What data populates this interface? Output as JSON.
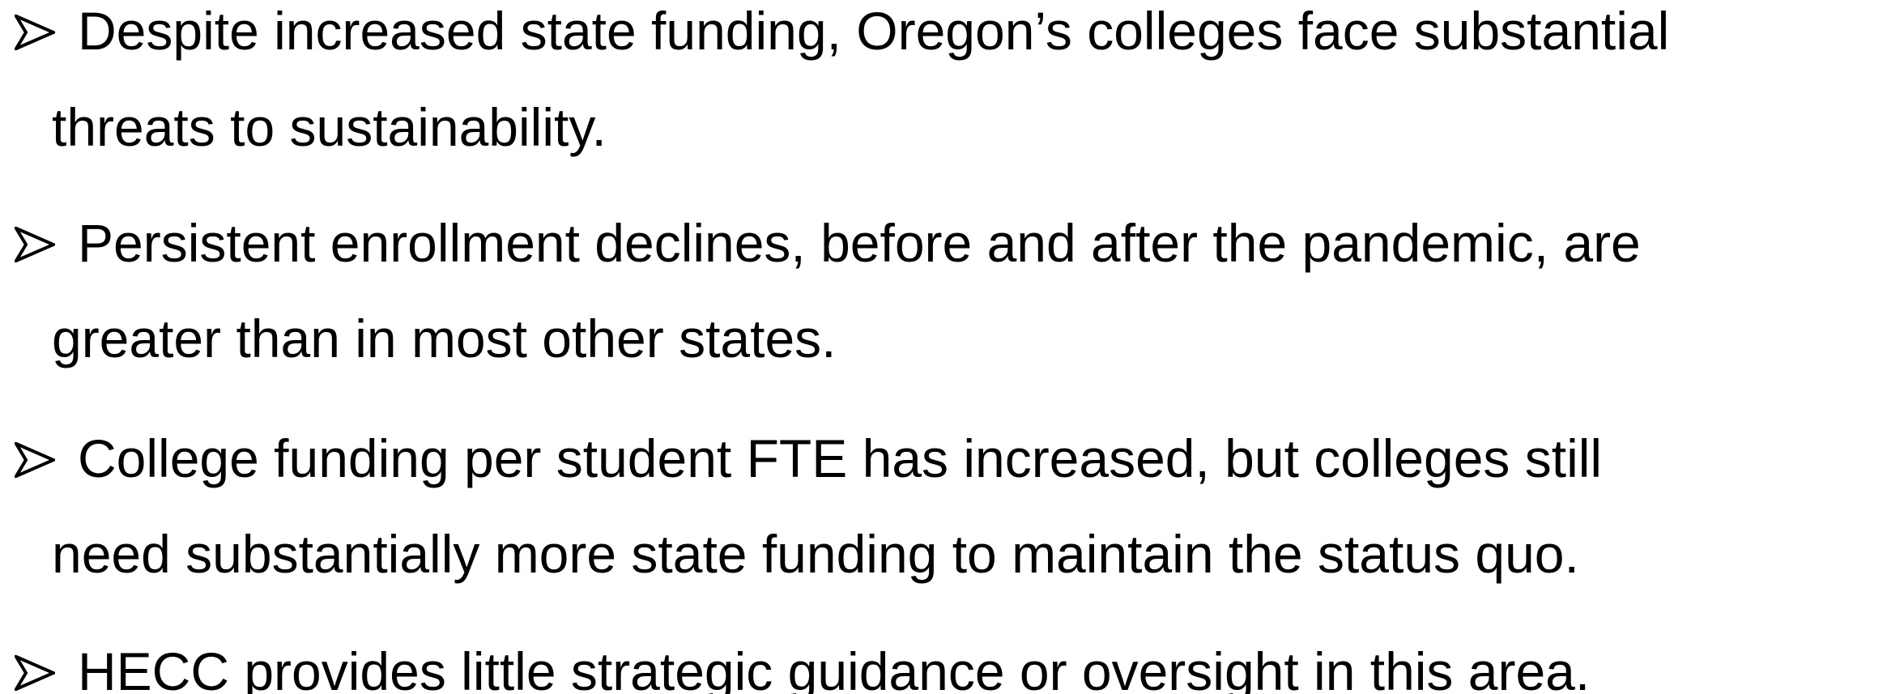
{
  "bullets": [
    {
      "lines": [
        "Despite increased state funding, Oregon’s colleges face substantial",
        "threats to sustainability."
      ]
    },
    {
      "lines": [
        "Persistent enrollment declines, before and after the pandemic, are",
        "greater than in most other states."
      ]
    },
    {
      "lines": [
        "College funding per student FTE has increased, but colleges still",
        "need substantially more state funding to maintain the status quo."
      ]
    },
    {
      "lines": [
        "HECC provides little strategic guidance or oversight in this area."
      ]
    }
  ]
}
